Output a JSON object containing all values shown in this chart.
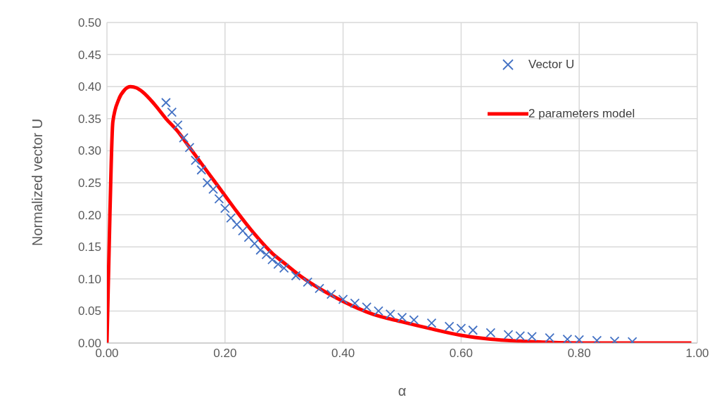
{
  "chart_data": {
    "type": "scatter",
    "xlabel": "α",
    "ylabel": "Normalized vector U",
    "xlim": [
      0,
      1
    ],
    "xticks": [
      {
        "value": 0,
        "label": "0.00"
      },
      {
        "value": 0.2,
        "label": "0.20"
      },
      {
        "value": 0.4,
        "label": "0.40"
      },
      {
        "value": 0.6,
        "label": "0.60"
      },
      {
        "value": 0.8,
        "label": "0.80"
      },
      {
        "value": 1,
        "label": "1.00"
      }
    ],
    "ylim": [
      0,
      0.5
    ],
    "yticks": [
      {
        "value": 0,
        "label": "0.00"
      },
      {
        "value": 0.05,
        "label": "0.05"
      },
      {
        "value": 0.1,
        "label": "0.10"
      },
      {
        "value": 0.15,
        "label": "0.15"
      },
      {
        "value": 0.2,
        "label": "0.20"
      },
      {
        "value": 0.25,
        "label": "0.25"
      },
      {
        "value": 0.3,
        "label": "0.30"
      },
      {
        "value": 0.35,
        "label": "0.35"
      },
      {
        "value": 0.4,
        "label": "0.40"
      },
      {
        "value": 0.45,
        "label": "0.45"
      },
      {
        "value": 0.5,
        "label": "0.50"
      }
    ],
    "grid": true,
    "legend": "top right",
    "series": [
      {
        "name": "Vector U",
        "marker": "cross",
        "color": "#4472c4",
        "x": [
          0.1,
          0.11,
          0.12,
          0.13,
          0.14,
          0.15,
          0.16,
          0.17,
          0.18,
          0.19,
          0.2,
          0.21,
          0.22,
          0.23,
          0.24,
          0.25,
          0.26,
          0.27,
          0.28,
          0.29,
          0.3,
          0.32,
          0.34,
          0.36,
          0.38,
          0.4,
          0.42,
          0.44,
          0.46,
          0.48,
          0.5,
          0.52,
          0.55,
          0.58,
          0.6,
          0.62,
          0.65,
          0.68,
          0.7,
          0.72,
          0.75,
          0.78,
          0.8,
          0.83,
          0.86,
          0.89
        ],
        "values": [
          0.375,
          0.36,
          0.34,
          0.32,
          0.305,
          0.285,
          0.27,
          0.25,
          0.24,
          0.225,
          0.21,
          0.195,
          0.185,
          0.175,
          0.165,
          0.155,
          0.145,
          0.138,
          0.13,
          0.123,
          0.117,
          0.105,
          0.095,
          0.085,
          0.076,
          0.068,
          0.062,
          0.056,
          0.05,
          0.045,
          0.04,
          0.036,
          0.031,
          0.026,
          0.023,
          0.02,
          0.016,
          0.013,
          0.011,
          0.01,
          0.008,
          0.006,
          0.005,
          0.004,
          0.003,
          0.002
        ]
      },
      {
        "name": "2 parameters model",
        "type": "line",
        "marker": "none",
        "line_style": "solid",
        "color": "#ff0000",
        "x": [
          0,
          0.005,
          0.01,
          0.02,
          0.03,
          0.04,
          0.05,
          0.06,
          0.08,
          0.1,
          0.12,
          0.14,
          0.16,
          0.18,
          0.2,
          0.22,
          0.25,
          0.28,
          0.3,
          0.33,
          0.36,
          0.4,
          0.45,
          0.5,
          0.55,
          0.6,
          0.65,
          0.7,
          0.75,
          0.8,
          0.9,
          0.99
        ],
        "values": [
          0,
          0.2,
          0.345,
          0.38,
          0.395,
          0.4,
          0.398,
          0.392,
          0.373,
          0.35,
          0.33,
          0.305,
          0.28,
          0.255,
          0.23,
          0.205,
          0.17,
          0.14,
          0.125,
          0.103,
          0.085,
          0.065,
          0.045,
          0.033,
          0.022,
          0.012,
          0.006,
          0.003,
          0.001,
          0,
          0,
          0
        ]
      }
    ]
  }
}
